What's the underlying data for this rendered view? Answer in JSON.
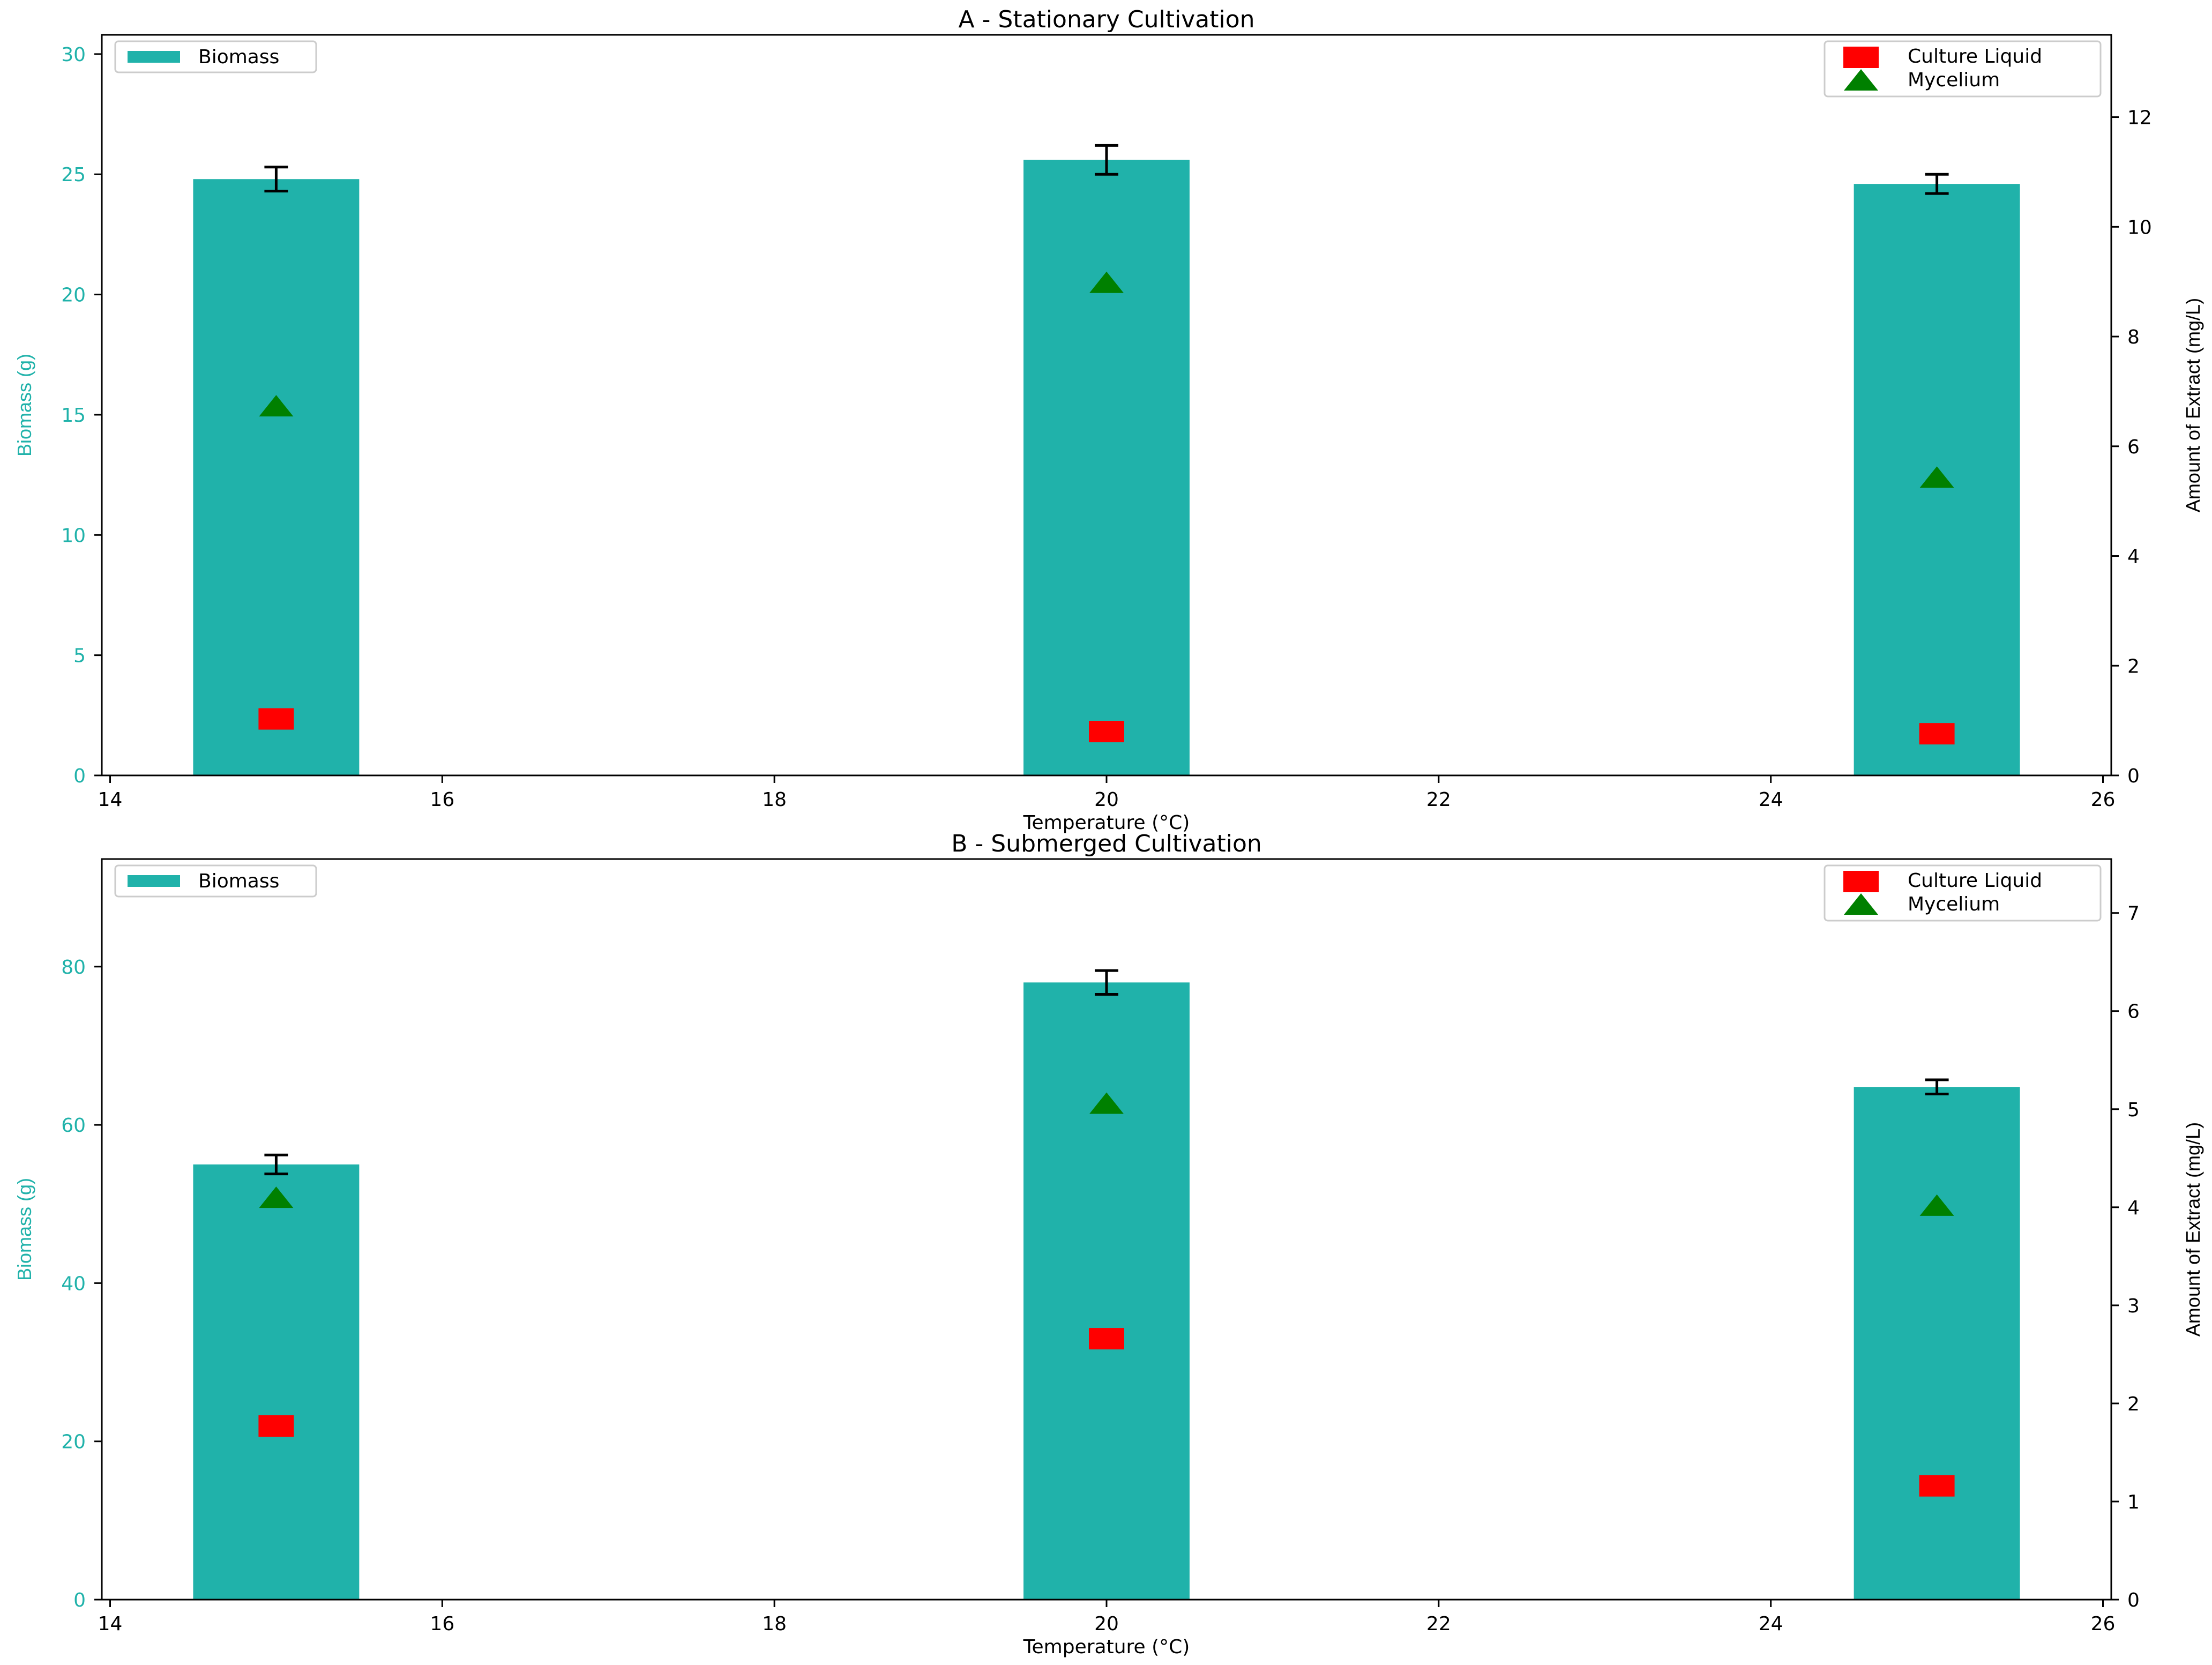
{
  "chart_data": [
    {
      "type": "bar",
      "title": "A - Stationary Cultivation",
      "xlabel": "Temperature (°C)",
      "ylabel": "Biomass (g)",
      "y2label": "Amount of Extract (mg/L)",
      "xlim": [
        13.95,
        26.05
      ],
      "ylim": [
        0,
        30.8
      ],
      "y2lim": [
        0,
        13.5
      ],
      "xticks": [
        "14",
        "16",
        "18",
        "20",
        "22",
        "24",
        "26"
      ],
      "yticks": [
        "0",
        "5",
        "10",
        "15",
        "20",
        "25",
        "30"
      ],
      "y2ticks": [
        "0",
        "2",
        "4",
        "6",
        "8",
        "10",
        "12"
      ],
      "categories": [
        15,
        20,
        25
      ],
      "series": [
        {
          "name": "Biomass",
          "kind": "bar",
          "axis": "left",
          "color": "#20b2aa",
          "values": [
            24.8,
            25.6,
            24.6
          ],
          "errors": [
            0.5,
            0.6,
            0.4
          ]
        },
        {
          "name": "Culture Liquid",
          "kind": "marker",
          "marker": "square",
          "axis": "right",
          "color": "#ff0000",
          "values": [
            1.03,
            0.8,
            0.76
          ]
        },
        {
          "name": "Mycelium",
          "kind": "marker",
          "marker": "triangle",
          "axis": "right",
          "color": "#008000",
          "values": [
            6.7,
            8.95,
            5.4
          ]
        }
      ],
      "legend_left": "upper-left",
      "legend_right": "upper-right",
      "grid": false
    },
    {
      "type": "bar",
      "title": "B - Submerged Cultivation",
      "xlabel": "Temperature (°C)",
      "ylabel": "Biomass (g)",
      "y2label": "Amount of Extract (mg/L)",
      "xlim": [
        13.95,
        26.05
      ],
      "ylim": [
        0,
        93.6
      ],
      "y2lim": [
        0,
        7.55
      ],
      "xticks": [
        "14",
        "16",
        "18",
        "20",
        "22",
        "24",
        "26"
      ],
      "yticks": [
        "0",
        "20",
        "40",
        "60",
        "80"
      ],
      "y2ticks": [
        "0",
        "1",
        "2",
        "3",
        "4",
        "5",
        "6",
        "7"
      ],
      "categories": [
        15,
        20,
        25
      ],
      "series": [
        {
          "name": "Biomass",
          "kind": "bar",
          "axis": "left",
          "color": "#20b2aa",
          "values": [
            55,
            78,
            64.8
          ],
          "errors": [
            1.2,
            1.5,
            0.9
          ]
        },
        {
          "name": "Culture Liquid",
          "kind": "marker",
          "marker": "square",
          "axis": "right",
          "color": "#ff0000",
          "values": [
            1.77,
            2.66,
            1.16
          ]
        },
        {
          "name": "Mycelium",
          "kind": "marker",
          "marker": "triangle",
          "axis": "right",
          "color": "#008000",
          "values": [
            4.08,
            5.04,
            4.0
          ]
        }
      ],
      "legend_left": "upper-left",
      "legend_right": "upper-right",
      "grid": false
    }
  ]
}
